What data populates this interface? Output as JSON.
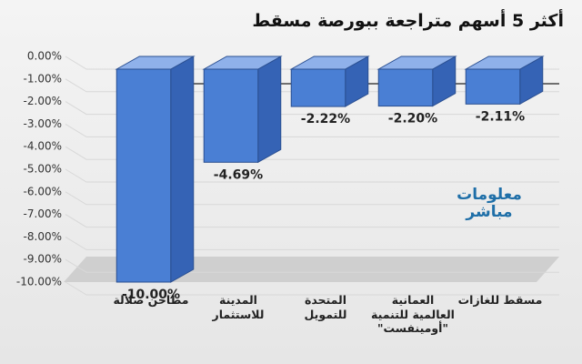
{
  "chart_data": {
    "type": "bar",
    "title": "أكثر 5 أسهم متراجعة ببورصة مسقط",
    "watermark": "معلومات مباشر",
    "categories": [
      "مطاحن صلالة",
      "المدينة للاستثمار",
      "المتحدة للتمويل",
      "العمانية العالمية للتنمية \"أومينفست\"",
      "مسقط للغازات"
    ],
    "values": [
      -10.0,
      -4.69,
      -2.22,
      -2.2,
      -2.11
    ],
    "value_labels": [
      "-10.00%",
      "-4.69%",
      "-2.22%",
      "-2.20%",
      "-2.11%"
    ],
    "color": "#4a7fd4",
    "ylim": [
      -10,
      0
    ],
    "yticks": [
      {
        "value": 0,
        "label": "0.00%"
      },
      {
        "value": -1,
        "label": "-1.00%"
      },
      {
        "value": -2,
        "label": "-2.00%"
      },
      {
        "value": -3,
        "label": "-3.00%"
      },
      {
        "value": -4,
        "label": "-4.00%"
      },
      {
        "value": -5,
        "label": "-5.00%"
      },
      {
        "value": -6,
        "label": "-6.00%"
      },
      {
        "value": -7,
        "label": "-7.00%"
      },
      {
        "value": -8,
        "label": "-8.00%"
      },
      {
        "value": -9,
        "label": "-9.00%"
      },
      {
        "value": -10,
        "label": "-10.00%"
      }
    ],
    "grid": true
  }
}
